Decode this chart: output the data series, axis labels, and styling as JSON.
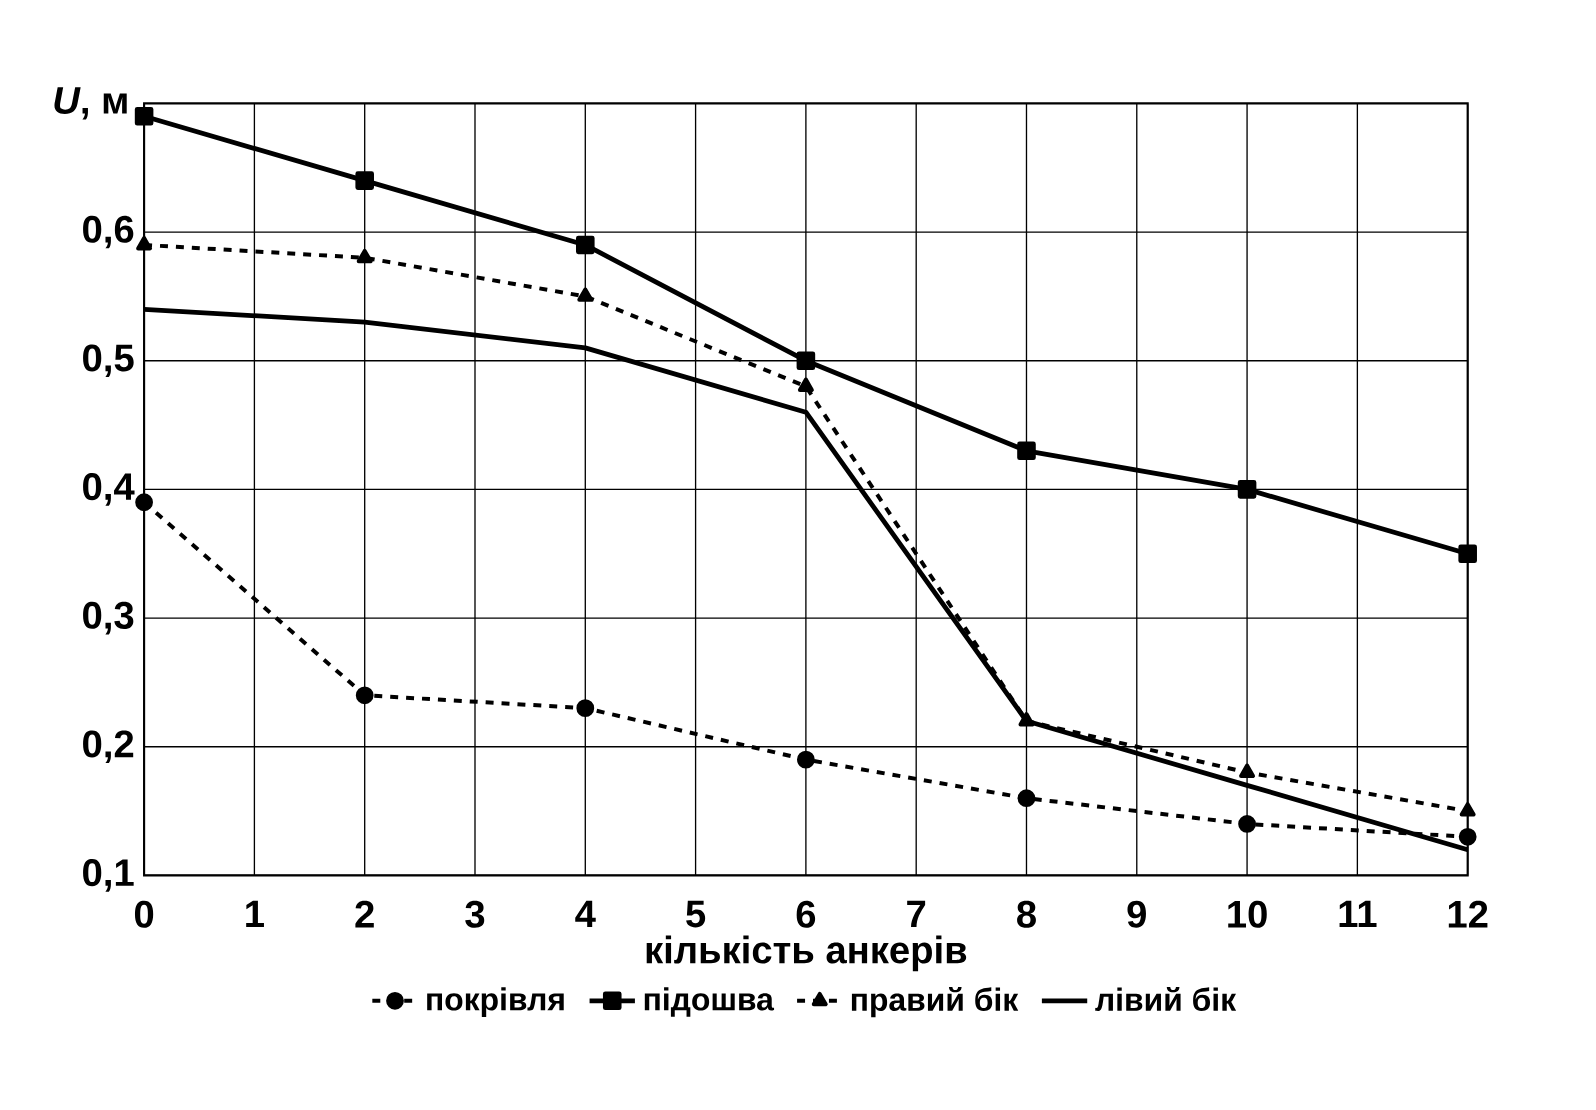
{
  "chart_data": {
    "type": "line",
    "xlabel": "кількість анкерів",
    "ylabel": "*U*, м",
    "x": [
      0,
      2,
      4,
      6,
      8,
      10,
      12
    ],
    "series": [
      {
        "name": "покрівля",
        "color": "#000000",
        "values": [
          0.39,
          0.24,
          0.23,
          0.19,
          0.16,
          0.14,
          0.13
        ],
        "marker": "circle",
        "line_style": "dashed"
      },
      {
        "name": "підошва",
        "color": "#000000",
        "values": [
          0.69,
          0.64,
          0.59,
          0.5,
          0.43,
          0.4,
          0.35
        ],
        "marker": "square",
        "line_style": "solid"
      },
      {
        "name": "правий бік",
        "color": "#000000",
        "values": [
          0.59,
          0.58,
          0.55,
          0.48,
          0.22,
          0.18,
          0.15
        ],
        "marker": "triangle",
        "line_style": "dashed"
      },
      {
        "name": "лівий бік",
        "color": "#000000",
        "values": [
          0.54,
          0.53,
          0.51,
          0.46,
          0.22,
          0.17,
          0.12
        ],
        "marker": "none",
        "line_style": "solid"
      }
    ],
    "xlim": [
      0,
      12
    ],
    "xticks": [
      0,
      1,
      2,
      3,
      4,
      5,
      6,
      7,
      8,
      9,
      10,
      11,
      12
    ],
    "ylim": [
      0.1,
      0.7
    ],
    "yticks": [
      {
        "value": 0.1,
        "label": "0,1"
      },
      {
        "value": 0.2,
        "label": "0,2"
      },
      {
        "value": 0.3,
        "label": "0,3"
      },
      {
        "value": 0.4,
        "label": "0,4"
      },
      {
        "value": 0.5,
        "label": "0,5"
      },
      {
        "value": 0.6,
        "label": "0,6"
      }
    ],
    "grid": true,
    "legend": "bottom"
  }
}
